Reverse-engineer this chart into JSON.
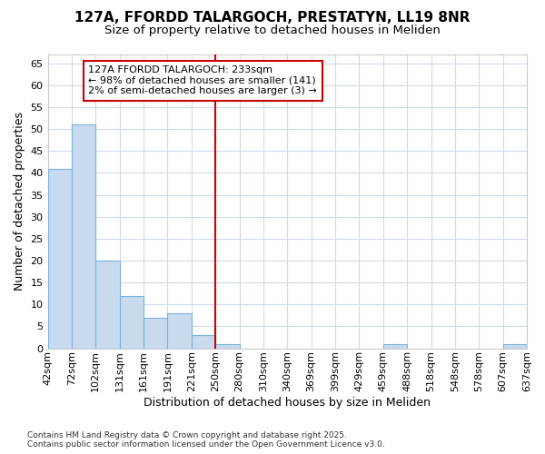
{
  "title1": "127A, FFORDD TALARGOCH, PRESTATYN, LL19 8NR",
  "title2": "Size of property relative to detached houses in Meliden",
  "xlabel": "Distribution of detached houses by size in Meliden",
  "ylabel": "Number of detached properties",
  "bin_labels": [
    "42sqm",
    "72sqm",
    "102sqm",
    "131sqm",
    "161sqm",
    "191sqm",
    "221sqm",
    "250sqm",
    "280sqm",
    "310sqm",
    "340sqm",
    "369sqm",
    "399sqm",
    "429sqm",
    "459sqm",
    "488sqm",
    "518sqm",
    "548sqm",
    "578sqm",
    "607sqm",
    "637sqm"
  ],
  "bar_values": [
    41,
    51,
    20,
    12,
    7,
    8,
    3,
    1,
    0,
    0,
    0,
    0,
    0,
    0,
    1,
    0,
    0,
    0,
    0,
    1
  ],
  "bar_color": "#c8daee",
  "bar_edge_color": "#7bb3d9",
  "vline_color": "#cc0000",
  "ylim_max": 67,
  "yticks": [
    0,
    5,
    10,
    15,
    20,
    25,
    30,
    35,
    40,
    45,
    50,
    55,
    60,
    65
  ],
  "annotation_title": "127A FFORDD TALARGOCH: 233sqm",
  "annotation_line1": "← 98% of detached houses are smaller (141)",
  "annotation_line2": "2% of semi-detached houses are larger (3) →",
  "footer1": "Contains HM Land Registry data © Crown copyright and database right 2025.",
  "footer2": "Contains public sector information licensed under the Open Government Licence v3.0.",
  "bg_color": "#ffffff",
  "grid_color": "#d0daea",
  "title_fontsize": 11,
  "subtitle_fontsize": 9.5,
  "axis_label_fontsize": 9,
  "tick_fontsize": 8,
  "annotation_fontsize": 8,
  "footer_fontsize": 6.5
}
